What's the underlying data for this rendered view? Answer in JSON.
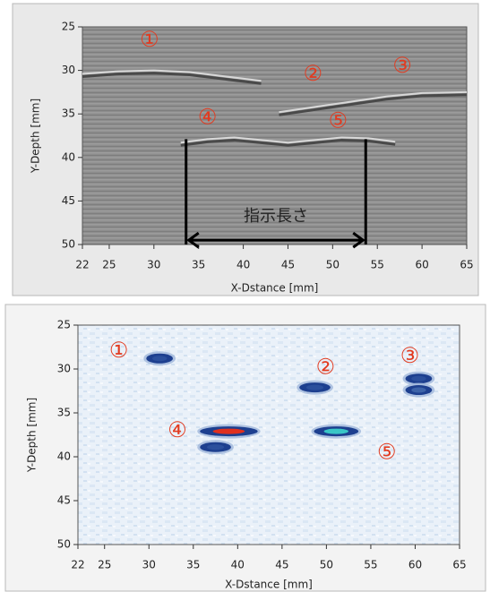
{
  "chart_data": [
    {
      "type": "bscan",
      "x_label": "X-Dstance [mm]",
      "y_label": "Y-Depth [mm]",
      "xlim": [
        22,
        65
      ],
      "xticks": [
        22,
        25,
        30,
        35,
        40,
        45,
        50,
        55,
        60,
        65
      ],
      "ylim": [
        50,
        25
      ],
      "yticks": [
        25,
        30,
        35,
        40,
        45,
        50
      ],
      "echoes": [
        {
          "x": [
            22,
            26,
            30,
            34,
            38,
            42
          ],
          "y": [
            30.4,
            30.1,
            30.0,
            30.2,
            30.7,
            31.2
          ]
        },
        {
          "x": [
            44,
            48,
            52,
            56,
            60,
            65
          ],
          "y": [
            34.8,
            34.2,
            33.6,
            33.0,
            32.6,
            32.5
          ]
        },
        {
          "x": [
            33,
            36,
            39,
            42,
            45,
            48,
            51,
            54,
            57
          ],
          "y": [
            38.3,
            37.9,
            37.7,
            38.0,
            38.3,
            38.0,
            37.7,
            37.8,
            38.2
          ]
        }
      ],
      "annotations": [
        {
          "text": "①",
          "x": 29.5,
          "y": 26.6
        },
        {
          "text": "②",
          "x": 47.8,
          "y": 30.5
        },
        {
          "text": "③",
          "x": 57.8,
          "y": 29.6
        },
        {
          "text": "④",
          "x": 36.0,
          "y": 35.5
        },
        {
          "text": "⑤",
          "x": 50.6,
          "y": 35.9
        }
      ],
      "measurement": {
        "label": "指示長さ",
        "x": [
          33.6,
          53.7
        ],
        "y": 49.5,
        "top": 37.9
      }
    },
    {
      "type": "cscan",
      "x_label": "X-Dstance [mm]",
      "y_label": "Y-Depth [mm]",
      "xlim": [
        22,
        65
      ],
      "xticks": [
        22,
        25,
        30,
        35,
        40,
        45,
        50,
        55,
        60,
        65
      ],
      "ylim": [
        50,
        25
      ],
      "yticks": [
        25,
        30,
        35,
        40,
        45,
        50
      ],
      "spots": [
        {
          "x": 31.2,
          "y": 28.8,
          "width": 3,
          "color": "#2b4f9c"
        },
        {
          "x": 48.7,
          "y": 32.1,
          "width": 3.5,
          "color": "#2b4f9c"
        },
        {
          "x": 60.4,
          "y": 31.1,
          "width": 3,
          "color": "#2b4f9c"
        },
        {
          "x": 60.4,
          "y": 32.4,
          "width": 3,
          "color": "#3d63a8"
        },
        {
          "x": 39.0,
          "y": 37.1,
          "width": 6.5,
          "color": "#e0301e"
        },
        {
          "x": 37.5,
          "y": 38.9,
          "width": 3.5,
          "color": "#2b4f9c"
        },
        {
          "x": 51.1,
          "y": 37.1,
          "width": 5,
          "color": "#39c6c6"
        }
      ],
      "annotations": [
        {
          "text": "①",
          "x": 26.6,
          "y": 28.0
        },
        {
          "text": "②",
          "x": 49.9,
          "y": 29.9
        },
        {
          "text": "③",
          "x": 59.4,
          "y": 28.6
        },
        {
          "text": "④",
          "x": 33.2,
          "y": 37.1
        },
        {
          "text": "⑤",
          "x": 56.8,
          "y": 39.6
        }
      ]
    }
  ]
}
